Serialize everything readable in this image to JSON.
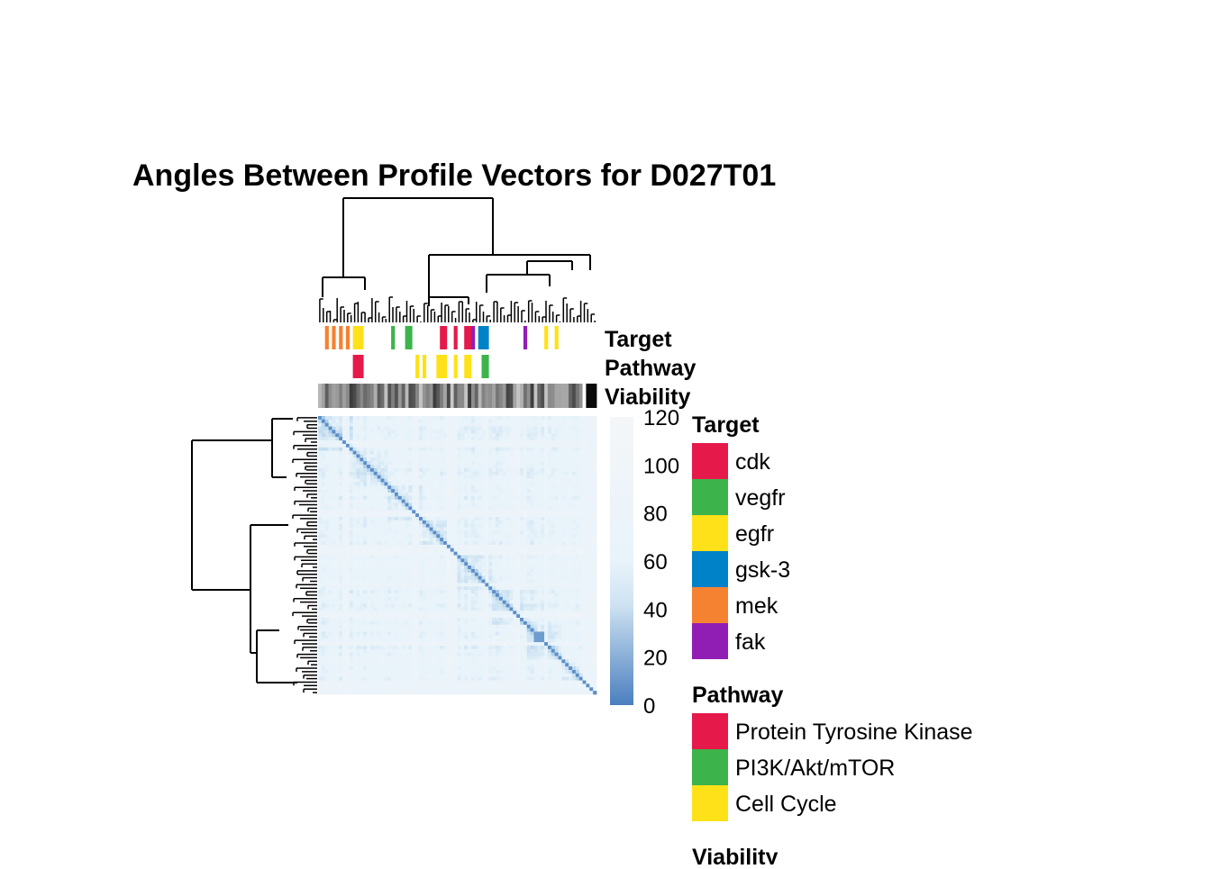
{
  "chart_data": {
    "type": "heatmap",
    "title": "Angles Between Profile Vectors for D027T01",
    "colorbar": {
      "min": 0,
      "max": 120,
      "ticks": [
        120,
        100,
        80,
        60,
        40,
        20,
        0
      ],
      "low_color": "#4a7fbf",
      "mid_color": "#e8f3fa",
      "high_color": "#f4f6f8"
    },
    "annotation_tracks": [
      "Target",
      "Pathway",
      "Viability"
    ],
    "legends": [
      {
        "title": "Target",
        "items": [
          {
            "label": "cdk",
            "color": "#e6194b"
          },
          {
            "label": "vegfr",
            "color": "#3cb44b"
          },
          {
            "label": "egfr",
            "color": "#ffe119"
          },
          {
            "label": "gsk-3",
            "color": "#0082c8"
          },
          {
            "label": "mek",
            "color": "#f58231"
          },
          {
            "label": "fak",
            "color": "#911eb4"
          }
        ]
      },
      {
        "title": "Pathway",
        "items": [
          {
            "label": "Protein Tyrosine Kinase",
            "color": "#e6194b"
          },
          {
            "label": "PI3K/Akt/mTOR",
            "color": "#3cb44b"
          },
          {
            "label": "Cell Cycle",
            "color": "#ffe119"
          }
        ]
      },
      {
        "title": "Viability",
        "items": []
      }
    ],
    "grid": false
  }
}
